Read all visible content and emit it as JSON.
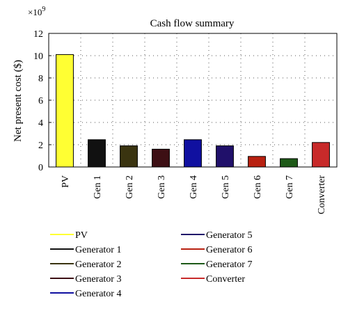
{
  "chart_data": {
    "type": "bar",
    "title": "Cash flow summary",
    "ylabel": "Net present cost ($)",
    "y_multiplier": "×10",
    "y_multiplier_exp": "9",
    "ylim": [
      0,
      12
    ],
    "yticks": [
      0,
      2,
      4,
      6,
      8,
      10,
      12
    ],
    "grid": "dotted",
    "categories": [
      "PV",
      "Gen 1",
      "Gen 2",
      "Gen 3",
      "Gen 4",
      "Gen 5",
      "Gen 6",
      "Gen 7",
      "Converter"
    ],
    "values": [
      10.1,
      2.45,
      1.9,
      1.6,
      2.45,
      1.9,
      0.95,
      0.75,
      2.2
    ],
    "colors": [
      "#ffff33",
      "#111111",
      "#3a3410",
      "#3d0f14",
      "#1010a0",
      "#20106a",
      "#b82010",
      "#1e5a18",
      "#c82a2a"
    ],
    "legend": [
      {
        "label": "PV",
        "color": "#ffff33"
      },
      {
        "label": "Generator 1",
        "color": "#111111"
      },
      {
        "label": "Generator 2",
        "color": "#3a3410"
      },
      {
        "label": "Generator 3",
        "color": "#3d0f14"
      },
      {
        "label": "Generator 4",
        "color": "#1010a0"
      },
      {
        "label": "Generator 5",
        "color": "#20106a"
      },
      {
        "label": "Generator 6",
        "color": "#b82010"
      },
      {
        "label": "Generator 7",
        "color": "#1e5a18"
      },
      {
        "label": "Converter",
        "color": "#c82a2a"
      }
    ]
  }
}
